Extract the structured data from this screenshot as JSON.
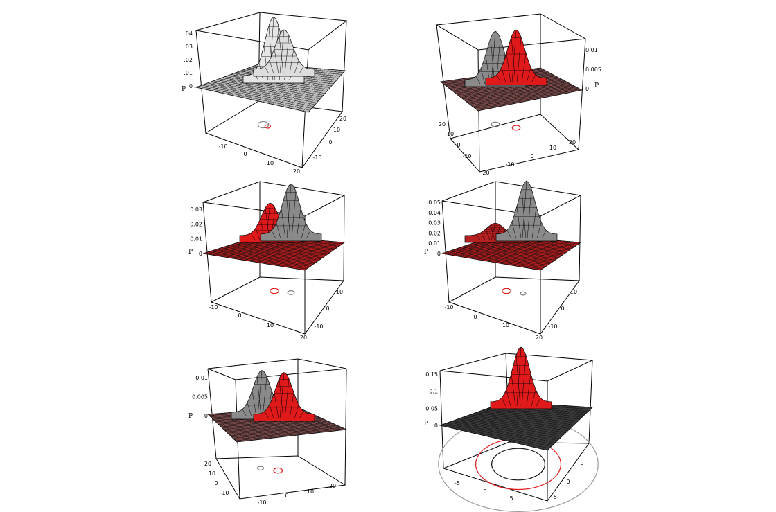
{
  "figure": {
    "description_free": true
  },
  "chart_data": [
    {
      "type": "surface3d",
      "zlabel": "P",
      "z_ticks": [
        ".04",
        ".03",
        ".02",
        ".01",
        "0"
      ],
      "x_ticks": [
        "-10",
        "0",
        "10",
        "20"
      ],
      "y_ticks": [
        "20",
        "10",
        "0",
        "-10"
      ],
      "peaks": [
        {
          "x": 0,
          "y": 0,
          "height": 0.045,
          "color": "#e6e6e6"
        },
        {
          "x": 4,
          "y": 4,
          "height": 0.03,
          "color": "#dddddd"
        }
      ],
      "plane_color": "#bdbdbd",
      "contours": [
        {
          "cx": 0,
          "cy": 0,
          "r": 1.5,
          "color": "#888888"
        },
        {
          "cx": 2,
          "cy": 2,
          "r": 0.8,
          "color": "#e0191b"
        }
      ]
    },
    {
      "type": "surface3d",
      "zlabel": "P",
      "z_ticks": [
        "0.01",
        "0.005",
        "0"
      ],
      "x_ticks": [
        "-20",
        "-10",
        "0",
        "10",
        "20"
      ],
      "y_ticks": [
        "20",
        "10",
        "0",
        "-10"
      ],
      "peaks": [
        {
          "x": -5,
          "y": -2,
          "height": 0.0125,
          "color": "#8a8a8a"
        },
        {
          "x": 5,
          "y": 2,
          "height": 0.0125,
          "color": "#e0191b"
        }
      ],
      "plane_color": "#7a4a4a",
      "contours": [
        {
          "cx": -5,
          "cy": -2,
          "r": 1.2,
          "color": "#777777"
        },
        {
          "cx": 5,
          "cy": 2,
          "r": 1.2,
          "color": "#e0191b"
        }
      ]
    },
    {
      "type": "surface3d",
      "zlabel": "P",
      "z_ticks": [
        "0.03",
        "0.02",
        "0.01",
        "0"
      ],
      "x_ticks": [
        "-10",
        "0",
        "10",
        "20"
      ],
      "y_ticks": [
        "10",
        "0",
        "-10"
      ],
      "peaks": [
        {
          "x": -3,
          "y": 0,
          "height": 0.022,
          "color": "#e0191b"
        },
        {
          "x": 5,
          "y": 2,
          "height": 0.034,
          "color": "#8a8a8a"
        }
      ],
      "plane_color": "#b01c1c",
      "contours": [
        {
          "cx": -3,
          "cy": 0,
          "r": 1.3,
          "color": "#e0191b"
        },
        {
          "cx": 5,
          "cy": 2,
          "r": 1.0,
          "color": "#777777"
        }
      ]
    },
    {
      "type": "surface3d",
      "zlabel": "P",
      "z_ticks": [
        "0.05",
        "0.04",
        "0.03",
        "0.02",
        "0.01",
        "0"
      ],
      "x_ticks": [
        "-10",
        "0",
        "10",
        "20"
      ],
      "y_ticks": [
        "10",
        "0",
        "-10"
      ],
      "peaks": [
        {
          "x": -3,
          "y": 0,
          "height": 0.012,
          "color": "#b72020"
        },
        {
          "x": 5,
          "y": 3,
          "height": 0.052,
          "color": "#8a8a8a"
        }
      ],
      "plane_color": "#b01c1c",
      "contours": [
        {
          "cx": -3,
          "cy": 0,
          "r": 1.3,
          "color": "#e0191b"
        },
        {
          "cx": 5,
          "cy": 3,
          "r": 0.8,
          "color": "#777777"
        }
      ]
    },
    {
      "type": "surface3d",
      "zlabel": "P",
      "z_ticks": [
        "0.01",
        "0.005",
        "0"
      ],
      "x_ticks": [
        "-10",
        "0",
        "10",
        "20"
      ],
      "y_ticks": [
        "20",
        "10",
        "0",
        "-10"
      ],
      "peaks": [
        {
          "x": -5,
          "y": -2,
          "height": 0.011,
          "color": "#8a8a8a"
        },
        {
          "x": 5,
          "y": 2,
          "height": 0.011,
          "color": "#e0191b"
        }
      ],
      "plane_color": "#7a4a4a",
      "contours": [
        {
          "cx": -5,
          "cy": -2,
          "r": 1.0,
          "color": "#777777"
        },
        {
          "cx": 4,
          "cy": 1,
          "r": 1.4,
          "color": "#e0191b"
        }
      ]
    },
    {
      "type": "surface3d",
      "zlabel": "P",
      "z_ticks": [
        "0.15",
        "0.1",
        "0.05",
        "0"
      ],
      "x_ticks": [
        "-5",
        "0",
        "5"
      ],
      "y_ticks": [
        "5",
        "0",
        "-5"
      ],
      "peaks": [
        {
          "x": 0,
          "y": 0,
          "height": 0.16,
          "color": "#e0191b"
        }
      ],
      "plane_color": "#3a3a3a",
      "contours": [
        {
          "cx": 0,
          "cy": 0,
          "r": 3.0,
          "color": "#999999"
        },
        {
          "cx": 0,
          "cy": 0,
          "r": 1.6,
          "color": "#e0191b"
        },
        {
          "cx": 0,
          "cy": 0,
          "r": 1.0,
          "color": "#111111"
        }
      ]
    }
  ]
}
